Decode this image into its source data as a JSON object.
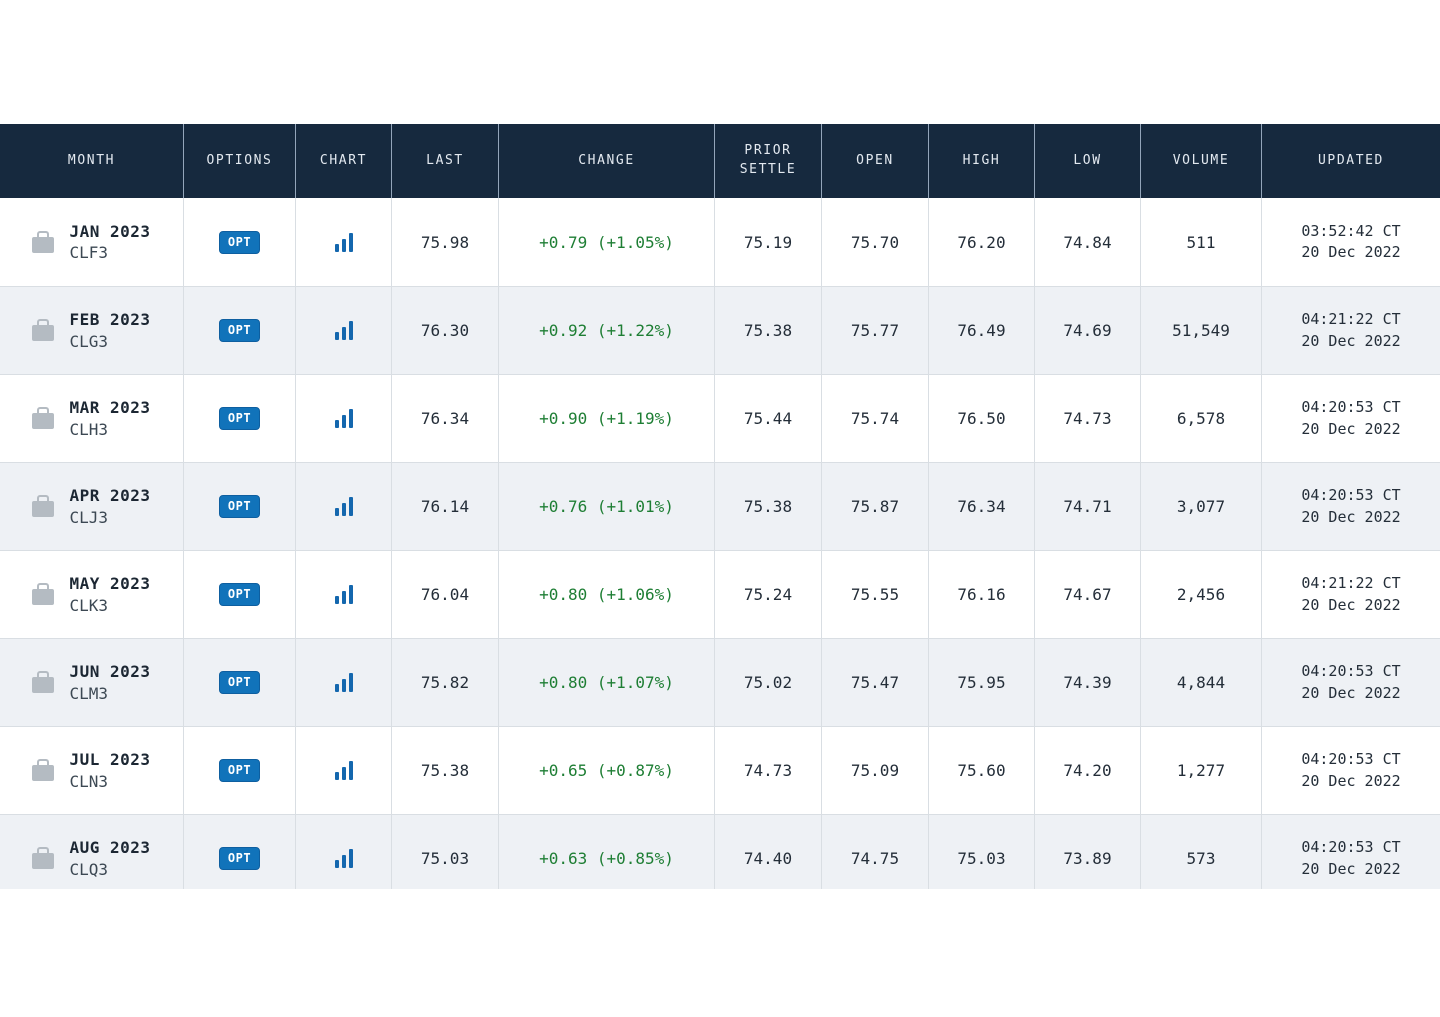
{
  "colors": {
    "header_bg": "#16293E",
    "header_text": "#E3E9F0",
    "row_alt_bg": "#EEF1F5",
    "row_divider": "#D9DEE3",
    "change_positive_green": "#1E7E34",
    "opt_button_blue": "#1173BA",
    "chart_icon_blue": "#1467AE",
    "briefcase_gray": "#B4BBC2"
  },
  "table": {
    "columns": [
      "MONTH",
      "OPTIONS",
      "CHART",
      "LAST",
      "CHANGE",
      "PRIOR SETTLE",
      "OPEN",
      "HIGH",
      "LOW",
      "VOLUME",
      "UPDATED"
    ],
    "opt_label": "OPT",
    "rows": [
      {
        "month": "JAN 2023",
        "code": "CLF3",
        "last": "75.98",
        "change": "+0.79 (+1.05%)",
        "prior_settle": "75.19",
        "open": "75.70",
        "high": "76.20",
        "low": "74.84",
        "volume": "511",
        "updated_time": "03:52:42 CT",
        "updated_date": "20 Dec 2022"
      },
      {
        "month": "FEB 2023",
        "code": "CLG3",
        "last": "76.30",
        "change": "+0.92 (+1.22%)",
        "prior_settle": "75.38",
        "open": "75.77",
        "high": "76.49",
        "low": "74.69",
        "volume": "51,549",
        "updated_time": "04:21:22 CT",
        "updated_date": "20 Dec 2022"
      },
      {
        "month": "MAR 2023",
        "code": "CLH3",
        "last": "76.34",
        "change": "+0.90 (+1.19%)",
        "prior_settle": "75.44",
        "open": "75.74",
        "high": "76.50",
        "low": "74.73",
        "volume": "6,578",
        "updated_time": "04:20:53 CT",
        "updated_date": "20 Dec 2022"
      },
      {
        "month": "APR 2023",
        "code": "CLJ3",
        "last": "76.14",
        "change": "+0.76 (+1.01%)",
        "prior_settle": "75.38",
        "open": "75.87",
        "high": "76.34",
        "low": "74.71",
        "volume": "3,077",
        "updated_time": "04:20:53 CT",
        "updated_date": "20 Dec 2022"
      },
      {
        "month": "MAY 2023",
        "code": "CLK3",
        "last": "76.04",
        "change": "+0.80 (+1.06%)",
        "prior_settle": "75.24",
        "open": "75.55",
        "high": "76.16",
        "low": "74.67",
        "volume": "2,456",
        "updated_time": "04:21:22 CT",
        "updated_date": "20 Dec 2022"
      },
      {
        "month": "JUN 2023",
        "code": "CLM3",
        "last": "75.82",
        "change": "+0.80 (+1.07%)",
        "prior_settle": "75.02",
        "open": "75.47",
        "high": "75.95",
        "low": "74.39",
        "volume": "4,844",
        "updated_time": "04:20:53 CT",
        "updated_date": "20 Dec 2022"
      },
      {
        "month": "JUL 2023",
        "code": "CLN3",
        "last": "75.38",
        "change": "+0.65 (+0.87%)",
        "prior_settle": "74.73",
        "open": "75.09",
        "high": "75.60",
        "low": "74.20",
        "volume": "1,277",
        "updated_time": "04:20:53 CT",
        "updated_date": "20 Dec 2022"
      },
      {
        "month": "AUG 2023",
        "code": "CLQ3",
        "last": "75.03",
        "change": "+0.63 (+0.85%)",
        "prior_settle": "74.40",
        "open": "74.75",
        "high": "75.03",
        "low": "73.89",
        "volume": "573",
        "updated_time": "04:20:53 CT",
        "updated_date": "20 Dec 2022"
      }
    ]
  }
}
